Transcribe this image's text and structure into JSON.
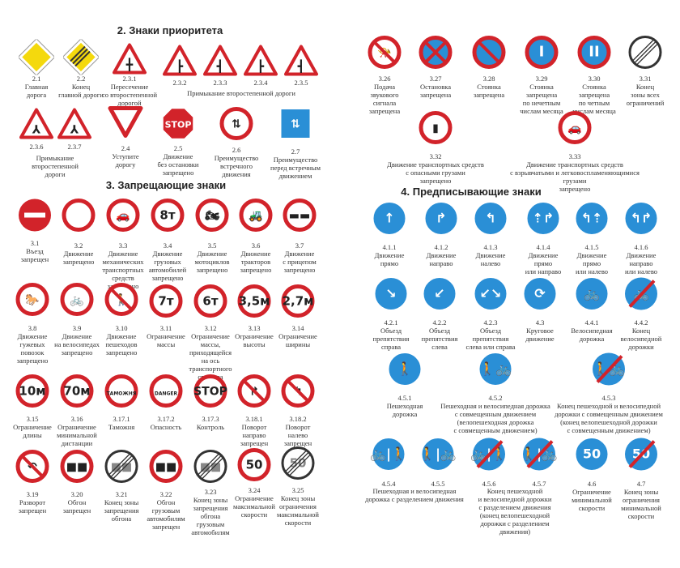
{
  "sections": {
    "priority": "2. Знаки приоритета",
    "prohibitory": "3. Запрещающие знаки",
    "mandatory": "4. Предписывающие знаки"
  },
  "colors": {
    "red": "#d2232a",
    "blue": "#2a8fd6",
    "yellow": "#f4d90d",
    "black": "#222222"
  },
  "signs": [
    {
      "code": "2.1",
      "caption": "Главная\nдорога",
      "kind": "diamond",
      "symbol": ""
    },
    {
      "code": "2.2",
      "caption": "Конец\nглавной дороги",
      "kind": "diamond-end",
      "symbol": ""
    },
    {
      "code": "2.3.1",
      "caption": "Пересечение\nсо второстепенной\nдорогой",
      "kind": "triangle",
      "symbol": "╋"
    },
    {
      "code": "2.3.2",
      "caption": "",
      "kind": "triangle",
      "symbol": "┣"
    },
    {
      "code": "2.3.3",
      "caption": "",
      "kind": "triangle",
      "symbol": "┫"
    },
    {
      "code": "2.3.4",
      "caption": "",
      "kind": "triangle",
      "symbol": "┣"
    },
    {
      "code": "2.3.5",
      "caption": "",
      "kind": "triangle",
      "symbol": "┫"
    },
    {
      "code": "2.3.6",
      "caption": "",
      "kind": "triangle",
      "symbol": "⅄"
    },
    {
      "code": "2.3.7",
      "caption": "",
      "kind": "triangle",
      "symbol": "⅄"
    },
    {
      "code": "2.4",
      "caption": "Уступите\nдорогу",
      "kind": "yield",
      "symbol": ""
    },
    {
      "code": "2.5",
      "caption": "Движение\nбез остановки\nзапрещено",
      "kind": "stop",
      "symbol": "STOP"
    },
    {
      "code": "2.6",
      "caption": "Преимущество\nвстречного\nдвижения",
      "kind": "prohibit",
      "symbol": "⇅"
    },
    {
      "code": "2.7",
      "caption": "Преимущество\nперед встречным\nдвижением",
      "kind": "square",
      "symbol": "⇅"
    },
    {
      "code": "3.1",
      "caption": "Въезд\nзапрещен",
      "kind": "noentry",
      "symbol": ""
    },
    {
      "code": "3.2",
      "caption": "Движение\nзапрещено",
      "kind": "prohibit",
      "symbol": ""
    },
    {
      "code": "3.3",
      "caption": "Движение\nмеханических\nтранспортных\nсредств\nзапрещено",
      "kind": "prohibit",
      "symbol": "🚗"
    },
    {
      "code": "3.4",
      "caption": "Движение\nгрузовых\nавтомобилей\nзапрещено",
      "kind": "prohibit",
      "symbol": "8т"
    },
    {
      "code": "3.5",
      "caption": "Движение\nмотоциклов\nзапрещено",
      "kind": "prohibit",
      "symbol": "🏍"
    },
    {
      "code": "3.6",
      "caption": "Движение\nтракторов\nзапрещено",
      "kind": "prohibit",
      "symbol": "🚜"
    },
    {
      "code": "3.7",
      "caption": "Движение\nс прицепом\nзапрещено",
      "kind": "prohibit",
      "symbol": "▬▬"
    },
    {
      "code": "3.8",
      "caption": "Движение\nгужевых\nповозок\nзапрещено",
      "kind": "prohibit",
      "symbol": "🐎"
    },
    {
      "code": "3.9",
      "caption": "Движение\nна велосипедах\nзапрещено",
      "kind": "prohibit",
      "symbol": "🚲"
    },
    {
      "code": "3.10",
      "caption": "Движение\nпешеходов\nзапрещено",
      "kind": "prohibit-slash",
      "symbol": "🚶"
    },
    {
      "code": "3.11",
      "caption": "Ограничение\nмассы",
      "kind": "prohibit",
      "symbol": "7т"
    },
    {
      "code": "3.12",
      "caption": "Ограничение\nмассы,\nприходящейся\nна ось\nтранспортного\nсредства",
      "kind": "prohibit",
      "symbol": "6т"
    },
    {
      "code": "3.13",
      "caption": "Ограничение\nвысоты",
      "kind": "prohibit",
      "symbol": "3,5м"
    },
    {
      "code": "3.14",
      "caption": "Ограничение\nширины",
      "kind": "prohibit",
      "symbol": "2,7м"
    },
    {
      "code": "3.15",
      "caption": "Ограничение\nдлины",
      "kind": "prohibit",
      "symbol": "10м"
    },
    {
      "code": "3.16",
      "caption": "Ограничение\nминимальной\nдистанции",
      "kind": "prohibit",
      "symbol": "70м"
    },
    {
      "code": "3.17.1",
      "caption": "Таможня",
      "kind": "prohibit",
      "symbol": "ТАМОЖНЯ"
    },
    {
      "code": "3.17.2",
      "caption": "Опасность",
      "kind": "prohibit",
      "symbol": "DANGER"
    },
    {
      "code": "3.17.3",
      "caption": "Контроль",
      "kind": "prohibit",
      "symbol": "STOP"
    },
    {
      "code": "3.18.1",
      "caption": "Поворот\nнаправо\nзапрещен",
      "kind": "prohibit-slash",
      "symbol": "↱"
    },
    {
      "code": "3.18.2",
      "caption": "Поворот\nналево\nзапрещен",
      "kind": "prohibit-slash",
      "symbol": "↰"
    },
    {
      "code": "3.19",
      "caption": "Разворот\nзапрещен",
      "kind": "prohibit-slash",
      "symbol": "↶"
    },
    {
      "code": "3.20",
      "caption": "Обгон\nзапрещен",
      "kind": "prohibit",
      "symbol": "■■"
    },
    {
      "code": "3.21",
      "caption": "Конец зоны\nзапрещения\nобгона",
      "kind": "end",
      "symbol": "■■"
    },
    {
      "code": "3.22",
      "caption": "Обгон\nгрузовым\nавтомобилям\nзапрещен",
      "kind": "prohibit",
      "symbol": "■■"
    },
    {
      "code": "3.23",
      "caption": "Конец зоны\nзапрещения\nобгона\nгрузовым\nавтомобилям",
      "kind": "end",
      "symbol": "■■"
    },
    {
      "code": "3.24",
      "caption": "Ограничение\nмаксимальной\nскорости",
      "kind": "prohibit",
      "symbol": "50"
    },
    {
      "code": "3.25",
      "caption": "Конец зоны\nограничения\nмаксимальной\nскорости",
      "kind": "end",
      "symbol": "50"
    },
    {
      "code": "3.26",
      "caption": "Подача\nзвукового\nсигнала\nзапрещена",
      "kind": "prohibit-slash",
      "symbol": "📯"
    },
    {
      "code": "3.27",
      "caption": "Остановка\nзапрещена",
      "kind": "blue-x",
      "symbol": ""
    },
    {
      "code": "3.28",
      "caption": "Стоянка\nзапрещена",
      "kind": "blue-slash",
      "symbol": ""
    },
    {
      "code": "3.29",
      "caption": "Стоянка\nзапрещена\nпо нечетным\nчислам месяца",
      "kind": "blue-slash",
      "symbol": "I"
    },
    {
      "code": "3.30",
      "caption": "Стоянка\nзапрещена\nпо четным\nчислам месяца",
      "kind": "blue-slash",
      "symbol": "II"
    },
    {
      "code": "3.31",
      "caption": "Конец\nзоны всех\nограничений",
      "kind": "end",
      "symbol": ""
    },
    {
      "code": "3.32",
      "caption": "Движение транспортных средств\nс опасными грузами\nзапрещено",
      "kind": "prohibit",
      "symbol": "▮"
    },
    {
      "code": "3.33",
      "caption": "Движение транспортных средств\nс взрывчатыми и легковоспламеняющимися грузами\nзапрещено",
      "kind": "prohibit",
      "symbol": "🚗"
    },
    {
      "code": "4.1.1",
      "caption": "Движение\nпрямо",
      "kind": "mandatory",
      "symbol": "↑"
    },
    {
      "code": "4.1.2",
      "caption": "Движение\nнаправо",
      "kind": "mandatory",
      "symbol": "↱"
    },
    {
      "code": "4.1.3",
      "caption": "Движение\nналево",
      "kind": "mandatory",
      "symbol": "↰"
    },
    {
      "code": "4.1.4",
      "caption": "Движение\nпрямо\nили направо",
      "kind": "mandatory",
      "symbol": "⇡↱"
    },
    {
      "code": "4.1.5",
      "caption": "Движение\nпрямо\nили налево",
      "kind": "mandatory",
      "symbol": "↰⇡"
    },
    {
      "code": "4.1.6",
      "caption": "Движение\nнаправо\nили налево",
      "kind": "mandatory",
      "symbol": "↰↱"
    },
    {
      "code": "4.2.1",
      "caption": "Объезд\nпрепятствия\nсправа",
      "kind": "mandatory",
      "symbol": "↘"
    },
    {
      "code": "4.2.2",
      "caption": "Объезд\nпрепятствия\nслева",
      "kind": "mandatory",
      "symbol": "↙"
    },
    {
      "code": "4.2.3",
      "caption": "Объезд\nпрепятствия\nслева или справа",
      "kind": "mandatory",
      "symbol": "↙↘"
    },
    {
      "code": "4.3",
      "caption": "Круговое\nдвижение",
      "kind": "mandatory",
      "symbol": "⟳"
    },
    {
      "code": "4.4.1",
      "caption": "Велосипедная\nдорожка",
      "kind": "mandatory",
      "symbol": "🚲"
    },
    {
      "code": "4.4.2",
      "caption": "Конец\nвелосипедной\nдорожки",
      "kind": "mandatory-end",
      "symbol": "🚲"
    },
    {
      "code": "4.5.1",
      "caption": "Пешеходная\nдорожка",
      "kind": "mandatory",
      "symbol": "🚶"
    },
    {
      "code": "4.5.2",
      "caption": "Пешеходная и велосипедная дорожка\nс совмещенным движением\n(велопешеходная дорожка\nс совмещенным движением)",
      "kind": "mandatory",
      "symbol": "🚶🚲"
    },
    {
      "code": "4.5.3",
      "caption": "Конец пешеходной и велосипедной\nдорожки с совмещенным движением\n(конец велопешеходной дорожки\nс совмещенным движением)",
      "kind": "mandatory-end",
      "symbol": "🚶🚲"
    },
    {
      "code": "4.5.4",
      "caption": "",
      "kind": "mandatory",
      "symbol": "🚲|🚶"
    },
    {
      "code": "4.5.5",
      "caption": "",
      "kind": "mandatory",
      "symbol": "🚶|🚲"
    },
    {
      "code": "4.5.6",
      "caption": "",
      "kind": "mandatory-end",
      "symbol": "🚲|🚶"
    },
    {
      "code": "4.5.7",
      "caption": "",
      "kind": "mandatory-end",
      "symbol": "🚶|🚲"
    },
    {
      "code": "4.6",
      "caption": "Ограничение\nминимальной\nскорости",
      "kind": "mandatory",
      "symbol": "50"
    },
    {
      "code": "4.7",
      "caption": "Конец зоны\nограничения\nминимальной\nскорости",
      "kind": "mandatory-end",
      "symbol": "50"
    }
  ],
  "shared_captions": {
    "junction_row1": "Примыкание второстепенной дороги",
    "junction_row2": "Примыкание\nвторостепенной\nдороги",
    "bike_separated": "Пешеходная и велосипедная\nдорожка с разделением движения",
    "bike_separated_end": "Конец пешеходной\nи велосипедной дорожки\nс разделением движения\n(конец велопешеходной\nдорожки с разделением\nдвижения)"
  }
}
